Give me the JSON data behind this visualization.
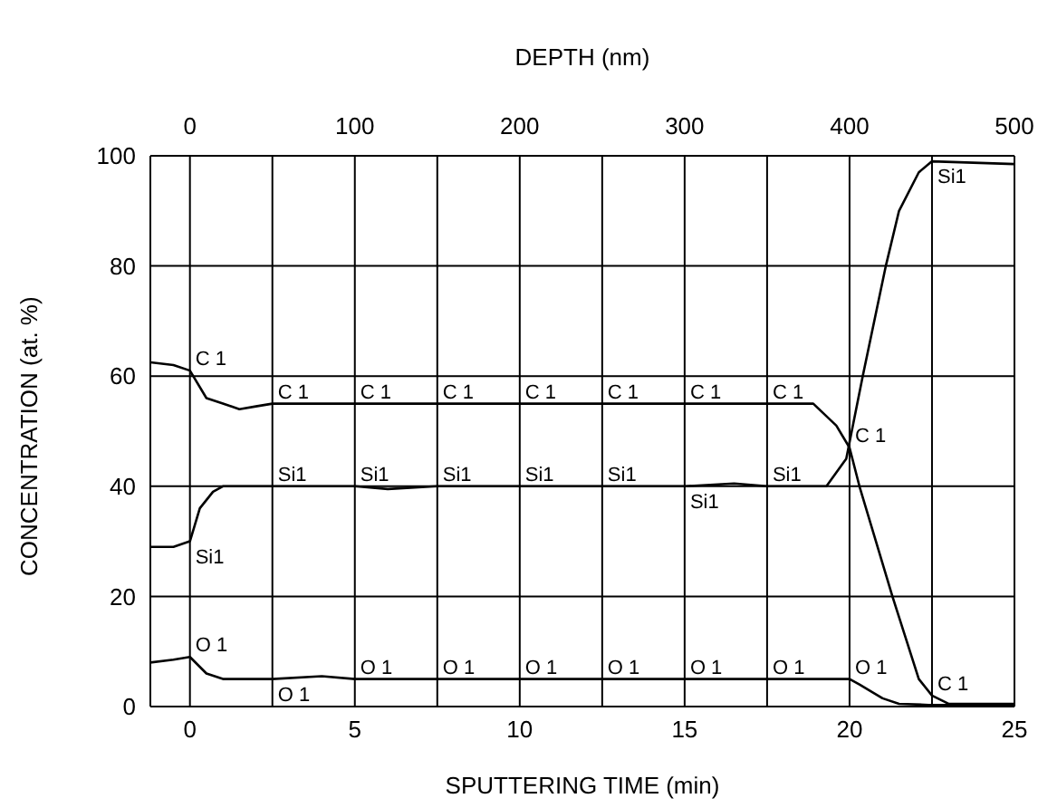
{
  "chart_data": {
    "type": "line",
    "xlabel": "SPUTTERING TIME (min)",
    "ylabel": "CONCENTRATION (at. %)",
    "x2label": "DEPTH (nm)",
    "xlim": [
      -1.2,
      25
    ],
    "xticks": [
      0,
      {
        "value": 2.5,
        "label": null
      },
      5,
      {
        "value": 7.5,
        "label": null
      },
      10,
      {
        "value": 12.5,
        "label": null
      },
      15,
      {
        "value": 17.5,
        "label": null
      },
      20,
      {
        "value": 22.5,
        "label": null
      },
      25
    ],
    "x2lim": [
      -24,
      500
    ],
    "x2ticks": [
      0,
      100,
      200,
      300,
      400,
      500
    ],
    "ylim": [
      0,
      100
    ],
    "yticks": [
      0,
      20,
      40,
      60,
      80,
      100
    ],
    "grid": true,
    "legend": false,
    "marker": "none",
    "line_style": "solid",
    "series": [
      {
        "name": "C 1",
        "color": "#000000",
        "x": [
          -1.2,
          -0.5,
          0,
          0.5,
          1,
          1.5,
          2,
          2.5,
          5,
          7.5,
          10,
          12.5,
          15,
          17.5,
          18.9,
          19.6,
          20,
          20.3,
          21.3,
          22.1,
          22.5,
          23,
          25
        ],
        "values": [
          62.5,
          62,
          61,
          56,
          55,
          54,
          54.5,
          55,
          55,
          55,
          55,
          55,
          55,
          55,
          55,
          51,
          47,
          40,
          20,
          5,
          2,
          0.5,
          0.5
        ]
      },
      {
        "name": "Si1",
        "color": "#000000",
        "x": [
          -1.2,
          -0.5,
          0,
          0.3,
          0.7,
          1,
          2.5,
          5,
          6,
          7.5,
          10,
          12.5,
          15,
          16.5,
          17.5,
          19.3,
          19.9,
          20.4,
          21.1,
          21.5,
          22.1,
          22.5,
          25
        ],
        "values": [
          29,
          29,
          30,
          36,
          39,
          40,
          40,
          40,
          39.5,
          40,
          40,
          40,
          40,
          40.5,
          40,
          40,
          45,
          60,
          80,
          90,
          97,
          99,
          98.5
        ]
      },
      {
        "name": "O 1",
        "color": "#000000",
        "x": [
          -1.2,
          -0.5,
          0,
          0.5,
          1,
          2.5,
          4,
          5,
          7.5,
          10,
          12.5,
          15,
          17.5,
          20,
          20.3,
          21,
          21.5,
          22.4,
          25
        ],
        "values": [
          8,
          8.5,
          9,
          6,
          5,
          5,
          5.5,
          5,
          5,
          5,
          5,
          5,
          5,
          5,
          4,
          1.5,
          0.5,
          0.3,
          0.3
        ]
      }
    ]
  }
}
